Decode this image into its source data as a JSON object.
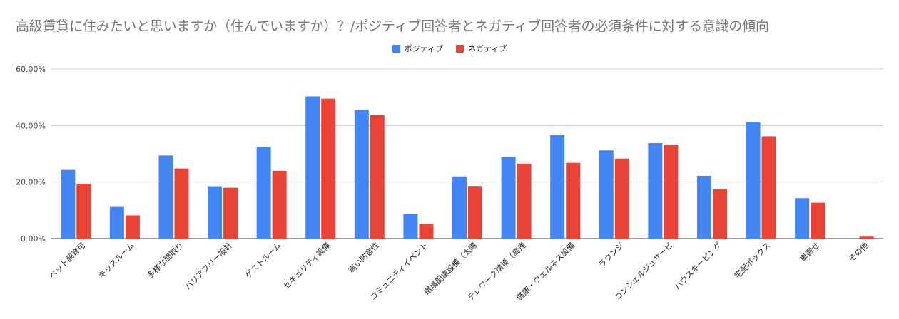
{
  "chart_data": {
    "type": "bar",
    "title": "高級賃貸に住みたいと思いますか（住んでいますか）？/ポジティブ回答者とネガティブ回答者の必須条件に対する意識の傾向",
    "categories": [
      "ペット飼育可",
      "キッズルーム",
      "多様な間取り",
      "バリアフリー設計",
      "ゲストルーム",
      "セキュリティ設備",
      "高い防音性",
      "コミュニティイベント",
      "環境配慮設備（太陽",
      "テレワーク環境（高速",
      "健康・ウェルネス設備",
      "ラウンジ",
      "コンシェルジュサービ",
      "ハウスキーピング",
      "宅配ボックス",
      "車寄せ",
      "その他"
    ],
    "series": [
      {
        "name": "ポジティブ",
        "color": "#4285F4",
        "values": [
          24.3,
          11.2,
          29.4,
          18.5,
          32.4,
          50.3,
          45.5,
          8.7,
          22.0,
          28.9,
          36.6,
          31.2,
          33.8,
          22.2,
          41.2,
          14.3,
          0.0
        ]
      },
      {
        "name": "ネガティブ",
        "color": "#EA4335",
        "values": [
          19.4,
          8.2,
          24.8,
          18.0,
          24.0,
          49.5,
          43.7,
          5.2,
          18.6,
          26.5,
          26.8,
          28.3,
          33.3,
          17.5,
          36.2,
          12.7,
          0.7
        ]
      }
    ],
    "ylim": [
      0,
      60
    ],
    "yticks": [
      0,
      20,
      40,
      60
    ],
    "ytick_labels": [
      "0.00%",
      "20.00%",
      "40.00%",
      "60.00%"
    ],
    "xlabel": "",
    "ylabel": "",
    "legend_position": "top-center",
    "grid": true
  }
}
